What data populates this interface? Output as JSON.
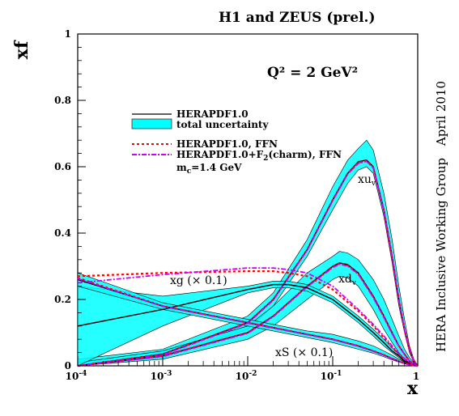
{
  "chart_data": {
    "type": "line",
    "title": "H1 and ZEUS (prel.)",
    "subtitle": "Q² = 2 GeV²",
    "xlabel": "x",
    "ylabel": "xf",
    "xscale": "log",
    "xlim": [
      0.0001,
      1
    ],
    "ylim": [
      0,
      1
    ],
    "x_ticks": [
      {
        "value": 0.0001,
        "base": "10",
        "exp": "-4"
      },
      {
        "value": 0.001,
        "base": "10",
        "exp": "-3"
      },
      {
        "value": 0.01,
        "base": "10",
        "exp": "-2"
      },
      {
        "value": 0.1,
        "base": "10",
        "exp": "-1"
      },
      {
        "value": 1,
        "base": "1",
        "exp": ""
      }
    ],
    "y_ticks": [
      "0",
      "0.2",
      "0.4",
      "0.6",
      "0.8",
      "1"
    ],
    "y_tick_values": [
      0,
      0.2,
      0.4,
      0.6,
      0.8,
      1
    ],
    "side_labels": [
      "April 2010",
      "HERA Inclusive Working Group"
    ],
    "legend": {
      "placement": "upper-left",
      "central": "HERAPDF1.0",
      "band": "total uncertainty",
      "ffn": "HERAPDF1.0, FFN",
      "charm_pre": "HERAPDF1.0+F",
      "charm_sub": "2",
      "charm_post": "(charm), FFN",
      "mc_pre": "m",
      "mc_sub": "c",
      "mc_post": "=1.4 GeV"
    },
    "curve_labels": {
      "xuv": {
        "base": "xu",
        "sub": "v"
      },
      "xdv": {
        "base": "xd",
        "sub": "v"
      },
      "xg": "xg (× 0.1)",
      "xS": "xS (× 0.1)"
    },
    "colors": {
      "band": "#00ffff",
      "central": "#000000",
      "ffn": "#ff0000",
      "charm": "#cc00ff"
    },
    "series": [
      {
        "name": "xu_v",
        "x": [
          0.0001,
          0.001,
          0.01,
          0.02,
          0.05,
          0.1,
          0.15,
          0.2,
          0.25,
          0.3,
          0.4,
          0.5,
          0.6,
          0.7,
          0.8,
          0.9,
          1
        ],
        "central": [
          0.0,
          0.035,
          0.13,
          0.2,
          0.35,
          0.5,
          0.58,
          0.615,
          0.62,
          0.6,
          0.47,
          0.33,
          0.2,
          0.11,
          0.05,
          0.015,
          0
        ],
        "lower": [
          0.0,
          0.025,
          0.11,
          0.18,
          0.33,
          0.47,
          0.55,
          0.59,
          0.6,
          0.58,
          0.45,
          0.31,
          0.18,
          0.1,
          0.04,
          0.01,
          0
        ],
        "upper": [
          0.02,
          0.05,
          0.15,
          0.22,
          0.38,
          0.54,
          0.62,
          0.655,
          0.68,
          0.65,
          0.52,
          0.38,
          0.24,
          0.14,
          0.06,
          0.02,
          0
        ],
        "ffn": [
          0.0,
          0.035,
          0.13,
          0.2,
          0.35,
          0.5,
          0.58,
          0.612,
          0.618,
          0.598,
          0.468,
          0.33,
          0.2,
          0.11,
          0.05,
          0.015,
          0
        ],
        "charm": [
          0.0,
          0.033,
          0.128,
          0.198,
          0.348,
          0.498,
          0.578,
          0.61,
          0.616,
          0.596,
          0.466,
          0.328,
          0.199,
          0.109,
          0.049,
          0.014,
          0
        ]
      },
      {
        "name": "xd_v",
        "x": [
          0.0001,
          0.001,
          0.01,
          0.02,
          0.05,
          0.1,
          0.12,
          0.15,
          0.2,
          0.3,
          0.4,
          0.5,
          0.6,
          0.7,
          0.8,
          0.9,
          1
        ],
        "central": [
          0.0,
          0.03,
          0.1,
          0.15,
          0.24,
          0.3,
          0.31,
          0.305,
          0.28,
          0.21,
          0.15,
          0.1,
          0.06,
          0.035,
          0.015,
          0.005,
          0
        ],
        "lower": [
          0.0,
          0.02,
          0.08,
          0.12,
          0.2,
          0.26,
          0.27,
          0.265,
          0.24,
          0.17,
          0.11,
          0.07,
          0.04,
          0.02,
          0.01,
          0.003,
          0
        ],
        "upper": [
          0.01,
          0.045,
          0.12,
          0.18,
          0.28,
          0.33,
          0.345,
          0.34,
          0.32,
          0.26,
          0.2,
          0.14,
          0.09,
          0.05,
          0.025,
          0.01,
          0
        ],
        "ffn": [
          0.0,
          0.03,
          0.1,
          0.15,
          0.24,
          0.298,
          0.308,
          0.303,
          0.278,
          0.208,
          0.148,
          0.098,
          0.06,
          0.035,
          0.015,
          0.005,
          0
        ],
        "charm": [
          0.0,
          0.028,
          0.098,
          0.148,
          0.238,
          0.296,
          0.306,
          0.301,
          0.276,
          0.206,
          0.146,
          0.097,
          0.059,
          0.034,
          0.015,
          0.005,
          0
        ]
      },
      {
        "name": "xg (× 0.1)",
        "x": [
          0.0001,
          0.001,
          0.01,
          0.02,
          0.03,
          0.05,
          0.1,
          0.2,
          0.3,
          0.4,
          0.5,
          0.6,
          0.7,
          0.8,
          0.9,
          1
        ],
        "central": [
          0.12,
          0.17,
          0.23,
          0.245,
          0.245,
          0.235,
          0.2,
          0.14,
          0.1,
          0.07,
          0.045,
          0.03,
          0.015,
          0.008,
          0.003,
          0
        ],
        "lower": [
          0.0,
          0.12,
          0.22,
          0.235,
          0.235,
          0.225,
          0.19,
          0.13,
          0.09,
          0.06,
          0.04,
          0.025,
          0.012,
          0.006,
          0.002,
          0
        ],
        "upper": [
          0.24,
          0.21,
          0.24,
          0.255,
          0.255,
          0.245,
          0.21,
          0.15,
          0.11,
          0.08,
          0.055,
          0.035,
          0.02,
          0.01,
          0.004,
          0
        ],
        "ffn": [
          0.27,
          0.28,
          0.285,
          0.285,
          0.28,
          0.27,
          0.23,
          0.165,
          0.12,
          0.085,
          0.055,
          0.035,
          0.02,
          0.01,
          0.004,
          0
        ],
        "charm": [
          0.25,
          0.275,
          0.295,
          0.295,
          0.29,
          0.28,
          0.24,
          0.17,
          0.125,
          0.09,
          0.06,
          0.038,
          0.022,
          0.011,
          0.004,
          0
        ]
      },
      {
        "name": "xS (× 0.1)",
        "x": [
          0.0001,
          0.001,
          0.01,
          0.02,
          0.05,
          0.1,
          0.2,
          0.3,
          0.4,
          0.5,
          0.6,
          0.7,
          0.8,
          0.9,
          1
        ],
        "central": [
          0.26,
          0.18,
          0.13,
          0.115,
          0.095,
          0.08,
          0.06,
          0.045,
          0.033,
          0.022,
          0.014,
          0.008,
          0.004,
          0.001,
          0
        ],
        "lower": [
          0.24,
          0.17,
          0.12,
          0.105,
          0.085,
          0.07,
          0.05,
          0.038,
          0.027,
          0.018,
          0.011,
          0.006,
          0.003,
          0.001,
          0
        ],
        "upper": [
          0.28,
          0.19,
          0.14,
          0.125,
          0.105,
          0.095,
          0.075,
          0.06,
          0.045,
          0.032,
          0.02,
          0.012,
          0.006,
          0.002,
          0
        ],
        "ffn": [
          0.265,
          0.18,
          0.13,
          0.115,
          0.095,
          0.08,
          0.06,
          0.045,
          0.033,
          0.022,
          0.014,
          0.008,
          0.004,
          0.001,
          0
        ],
        "charm": [
          0.263,
          0.179,
          0.129,
          0.114,
          0.094,
          0.079,
          0.059,
          0.044,
          0.032,
          0.021,
          0.013,
          0.007,
          0.003,
          0.001,
          0
        ]
      }
    ]
  }
}
